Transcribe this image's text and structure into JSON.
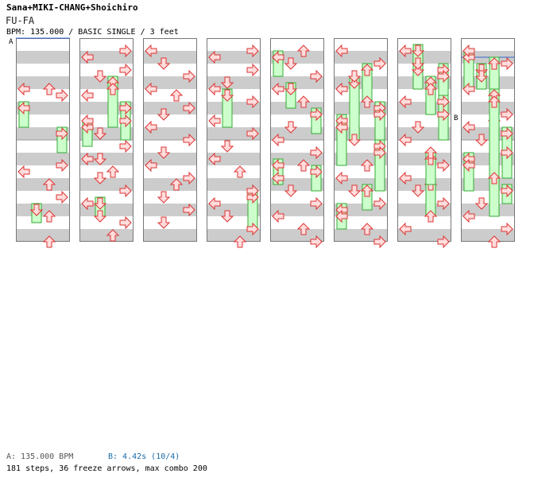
{
  "header": {
    "artist": "Sana+MIKI-CHANG+Shoichiro",
    "title": "FU-FA",
    "subtitle": "BPM: 135.000 / BASIC SINGLE / 3 feet"
  },
  "markers": {
    "a": "A",
    "b": "B"
  },
  "footer": {
    "bpm_a": "A: 135.000 BPM",
    "bpm_b": "B: 4.42s (10/4)",
    "stats": "181 steps, 36 freeze arrows, max combo 200"
  },
  "colors": {
    "stripe": "#cccccc",
    "arrow_fill": "#ffdddd",
    "arrow_stroke": "#dd3333",
    "freeze_fill": "#ccffcc",
    "freeze_stroke": "#33aa33",
    "marker_line": "#3366cc"
  },
  "chart_data": {
    "type": "step-chart",
    "mode": "BASIC SINGLE",
    "difficulty_feet": 3,
    "bpm": 135.0,
    "lanes": [
      "left",
      "down",
      "up",
      "right"
    ],
    "beats_per_column": 32,
    "columns": 8,
    "note_unit": "beat index from song start (1/4 = eighth note)",
    "markers": [
      {
        "label": "A",
        "beat": 0
      },
      {
        "label": "B",
        "beat": 227
      }
    ],
    "arrows": [
      {
        "beat": 7,
        "dir": "left"
      },
      {
        "beat": 7,
        "dir": "up"
      },
      {
        "beat": 8,
        "dir": "right"
      },
      {
        "beat": 19,
        "dir": "right"
      },
      {
        "beat": 20,
        "dir": "left"
      },
      {
        "beat": 22,
        "dir": "up"
      },
      {
        "beat": 24,
        "dir": "right"
      },
      {
        "beat": 26,
        "dir": "down"
      },
      {
        "beat": 27,
        "dir": "up"
      },
      {
        "beat": 31,
        "dir": "up"
      },
      {
        "beat": 33,
        "dir": "right"
      },
      {
        "beat": 34,
        "dir": "left"
      },
      {
        "beat": 36,
        "dir": "right"
      },
      {
        "beat": 37,
        "dir": "down"
      },
      {
        "beat": 39,
        "dir": "up"
      },
      {
        "beat": 40,
        "dir": "left"
      },
      {
        "beat": 44,
        "dir": "left"
      },
      {
        "beat": 44,
        "dir": "right"
      },
      {
        "beat": 46,
        "dir": "down"
      },
      {
        "beat": 48,
        "dir": "right"
      },
      {
        "beat": 50,
        "dir": "down"
      },
      {
        "beat": 50,
        "dir": "left"
      },
      {
        "beat": 52,
        "dir": "up"
      },
      {
        "beat": 53,
        "dir": "down"
      },
      {
        "beat": 55,
        "dir": "right"
      },
      {
        "beat": 57,
        "dir": "left"
      },
      {
        "beat": 59,
        "dir": "down"
      },
      {
        "beat": 60,
        "dir": "right"
      },
      {
        "beat": 62,
        "dir": "up"
      },
      {
        "beat": 65,
        "dir": "left"
      },
      {
        "beat": 67,
        "dir": "down"
      },
      {
        "beat": 69,
        "dir": "right"
      },
      {
        "beat": 71,
        "dir": "left"
      },
      {
        "beat": 72,
        "dir": "up"
      },
      {
        "beat": 74,
        "dir": "right"
      },
      {
        "beat": 75,
        "dir": "down"
      },
      {
        "beat": 77,
        "dir": "left"
      },
      {
        "beat": 79,
        "dir": "right"
      },
      {
        "beat": 81,
        "dir": "down"
      },
      {
        "beat": 83,
        "dir": "left"
      },
      {
        "beat": 85,
        "dir": "right"
      },
      {
        "beat": 86,
        "dir": "up"
      },
      {
        "beat": 88,
        "dir": "down"
      },
      {
        "beat": 90,
        "dir": "right"
      },
      {
        "beat": 92,
        "dir": "down"
      },
      {
        "beat": 97,
        "dir": "right"
      },
      {
        "beat": 98,
        "dir": "left"
      },
      {
        "beat": 100,
        "dir": "right"
      },
      {
        "beat": 102,
        "dir": "down"
      },
      {
        "beat": 103,
        "dir": "left"
      },
      {
        "beat": 105,
        "dir": "right"
      },
      {
        "beat": 108,
        "dir": "left"
      },
      {
        "beat": 110,
        "dir": "right"
      },
      {
        "beat": 112,
        "dir": "down"
      },
      {
        "beat": 114,
        "dir": "left"
      },
      {
        "beat": 116,
        "dir": "up"
      },
      {
        "beat": 119,
        "dir": "right"
      },
      {
        "beat": 121,
        "dir": "left"
      },
      {
        "beat": 123,
        "dir": "down"
      },
      {
        "beat": 125,
        "dir": "right"
      },
      {
        "beat": 127,
        "dir": "up"
      },
      {
        "beat": 129,
        "dir": "up"
      },
      {
        "beat": 130,
        "dir": "left"
      },
      {
        "beat": 131,
        "dir": "down"
      },
      {
        "beat": 133,
        "dir": "right"
      },
      {
        "beat": 135,
        "dir": "left"
      },
      {
        "beat": 137,
        "dir": "up"
      },
      {
        "beat": 139,
        "dir": "right"
      },
      {
        "beat": 141,
        "dir": "down"
      },
      {
        "beat": 143,
        "dir": "left"
      },
      {
        "beat": 145,
        "dir": "right"
      },
      {
        "beat": 147,
        "dir": "up"
      },
      {
        "beat": 149,
        "dir": "left"
      },
      {
        "beat": 151,
        "dir": "down"
      },
      {
        "beat": 153,
        "dir": "right"
      },
      {
        "beat": 155,
        "dir": "left"
      },
      {
        "beat": 157,
        "dir": "up"
      },
      {
        "beat": 159,
        "dir": "right"
      },
      {
        "beat": 161,
        "dir": "left"
      },
      {
        "beat": 163,
        "dir": "right"
      },
      {
        "beat": 165,
        "dir": "down"
      },
      {
        "beat": 167,
        "dir": "left"
      },
      {
        "beat": 169,
        "dir": "up"
      },
      {
        "beat": 171,
        "dir": "right"
      },
      {
        "beat": 173,
        "dir": "left"
      },
      {
        "beat": 175,
        "dir": "down"
      },
      {
        "beat": 177,
        "dir": "right"
      },
      {
        "beat": 179,
        "dir": "up"
      },
      {
        "beat": 181,
        "dir": "left"
      },
      {
        "beat": 183,
        "dir": "down"
      },
      {
        "beat": 185,
        "dir": "right"
      },
      {
        "beat": 187,
        "dir": "left"
      },
      {
        "beat": 189,
        "dir": "up"
      },
      {
        "beat": 191,
        "dir": "right"
      },
      {
        "beat": 193,
        "dir": "left"
      },
      {
        "beat": 195,
        "dir": "down"
      },
      {
        "beat": 197,
        "dir": "right"
      },
      {
        "beat": 199,
        "dir": "up"
      },
      {
        "beat": 201,
        "dir": "left"
      },
      {
        "beat": 203,
        "dir": "right"
      },
      {
        "beat": 205,
        "dir": "down"
      },
      {
        "beat": 207,
        "dir": "left"
      },
      {
        "beat": 209,
        "dir": "up"
      },
      {
        "beat": 211,
        "dir": "right"
      },
      {
        "beat": 213,
        "dir": "left"
      },
      {
        "beat": 215,
        "dir": "down"
      },
      {
        "beat": 217,
        "dir": "right"
      },
      {
        "beat": 219,
        "dir": "up"
      },
      {
        "beat": 221,
        "dir": "left"
      },
      {
        "beat": 223,
        "dir": "right"
      },
      {
        "beat": 225,
        "dir": "left"
      },
      {
        "beat": 227,
        "dir": "right"
      },
      {
        "beat": 229,
        "dir": "down"
      },
      {
        "beat": 231,
        "dir": "left"
      },
      {
        "beat": 233,
        "dir": "up"
      },
      {
        "beat": 235,
        "dir": "right"
      },
      {
        "beat": 237,
        "dir": "left"
      },
      {
        "beat": 239,
        "dir": "down"
      },
      {
        "beat": 241,
        "dir": "right"
      },
      {
        "beat": 243,
        "dir": "left"
      },
      {
        "beat": 245,
        "dir": "up"
      },
      {
        "beat": 247,
        "dir": "right"
      },
      {
        "beat": 249,
        "dir": "down"
      },
      {
        "beat": 251,
        "dir": "left"
      },
      {
        "beat": 253,
        "dir": "right"
      },
      {
        "beat": 255,
        "dir": "up"
      }
    ],
    "freezes": [
      {
        "start": 10,
        "end": 14,
        "dir": "left"
      },
      {
        "start": 14,
        "end": 18,
        "dir": "right"
      },
      {
        "start": 26,
        "end": 29,
        "dir": "down"
      },
      {
        "start": 38,
        "end": 46,
        "dir": "up"
      },
      {
        "start": 42,
        "end": 48,
        "dir": "right"
      },
      {
        "start": 45,
        "end": 49,
        "dir": "left"
      },
      {
        "start": 104,
        "end": 110,
        "dir": "down"
      },
      {
        "start": 120,
        "end": 126,
        "dir": "right"
      },
      {
        "start": 135,
        "end": 139,
        "dir": "down"
      },
      {
        "start": 147,
        "end": 151,
        "dir": "left"
      },
      {
        "start": 170,
        "end": 176,
        "dir": "right"
      },
      {
        "start": 183,
        "end": 187,
        "dir": "up"
      },
      {
        "start": 193,
        "end": 199,
        "dir": "down"
      },
      {
        "start": 214,
        "end": 220,
        "dir": "up"
      },
      {
        "start": 226,
        "end": 232,
        "dir": "left"
      },
      {
        "start": 238,
        "end": 246,
        "dir": "right"
      },
      {
        "start": 130,
        "end": 134,
        "dir": "left"
      },
      {
        "start": 164,
        "end": 170,
        "dir": "up"
      },
      {
        "start": 196,
        "end": 204,
        "dir": "right"
      },
      {
        "start": 166,
        "end": 176,
        "dir": "down"
      },
      {
        "start": 228,
        "end": 232,
        "dir": "down"
      },
      {
        "start": 242,
        "end": 248,
        "dir": "left"
      },
      {
        "start": 210,
        "end": 215,
        "dir": "up"
      },
      {
        "start": 172,
        "end": 180,
        "dir": "left"
      },
      {
        "start": 176,
        "end": 184,
        "dir": "right"
      },
      {
        "start": 186,
        "end": 190,
        "dir": "left"
      },
      {
        "start": 196,
        "end": 200,
        "dir": "down"
      },
      {
        "start": 198,
        "end": 204,
        "dir": "up"
      },
      {
        "start": 201,
        "end": 208,
        "dir": "right"
      },
      {
        "start": 236,
        "end": 250,
        "dir": "up"
      },
      {
        "start": 227,
        "end": 232,
        "dir": "up"
      },
      {
        "start": 139,
        "end": 143,
        "dir": "right"
      },
      {
        "start": 148,
        "end": 152,
        "dir": "right"
      },
      {
        "start": 247,
        "end": 250,
        "dir": "right"
      },
      {
        "start": 57,
        "end": 60,
        "dir": "down"
      },
      {
        "start": 232,
        "end": 252,
        "dir": "up"
      }
    ]
  }
}
